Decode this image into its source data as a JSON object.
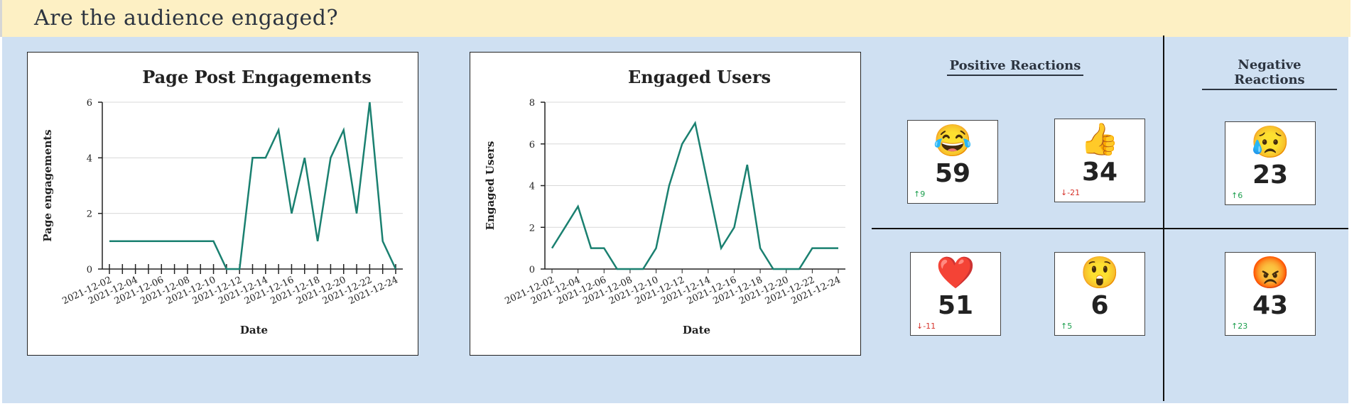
{
  "header": {
    "title": "Are the audience engaged?"
  },
  "chart_data": [
    {
      "type": "line",
      "title": "Page Post Engagements",
      "xlabel": "Date",
      "ylabel": "Page engagements",
      "ylim": [
        0,
        6
      ],
      "yticks": [
        0,
        2,
        4,
        6
      ],
      "xtick_labels": [
        "2021-12-02",
        "2021-12-04",
        "2021-12-06",
        "2021-12-08",
        "2021-12-10",
        "2021-12-12",
        "2021-12-14",
        "2021-12-16",
        "2021-12-18",
        "2021-12-20",
        "2021-12-22",
        "2021-12-24"
      ],
      "x": [
        "2021-12-02",
        "2021-12-03",
        "2021-12-04",
        "2021-12-05",
        "2021-12-06",
        "2021-12-07",
        "2021-12-08",
        "2021-12-09",
        "2021-12-10",
        "2021-12-11",
        "2021-12-12",
        "2021-12-13",
        "2021-12-14",
        "2021-12-15",
        "2021-12-16",
        "2021-12-17",
        "2021-12-18",
        "2021-12-19",
        "2021-12-20",
        "2021-12-21",
        "2021-12-22",
        "2021-12-23",
        "2021-12-24"
      ],
      "values": [
        1,
        1,
        1,
        1,
        1,
        1,
        1,
        1,
        1,
        0,
        0,
        4,
        4,
        5,
        2,
        4,
        1,
        4,
        5,
        2,
        6,
        1,
        0
      ],
      "grid": true,
      "color": "#1a8070"
    },
    {
      "type": "line",
      "title": "Engaged Users",
      "xlabel": "Date",
      "ylabel": "Engaged Users",
      "ylim": [
        0,
        8
      ],
      "yticks": [
        0,
        2,
        4,
        6,
        8
      ],
      "xtick_labels": [
        "2021-12-02",
        "2021-12-04",
        "2021-12-06",
        "2021-12-08",
        "2021-12-10",
        "2021-12-12",
        "2021-12-14",
        "2021-12-16",
        "2021-12-18",
        "2021-12-20",
        "2021-12-22",
        "2021-12-24"
      ],
      "x": [
        "2021-12-02",
        "2021-12-03",
        "2021-12-04",
        "2021-12-05",
        "2021-12-06",
        "2021-12-07",
        "2021-12-08",
        "2021-12-09",
        "2021-12-10",
        "2021-12-11",
        "2021-12-12",
        "2021-12-13",
        "2021-12-14",
        "2021-12-15",
        "2021-12-16",
        "2021-12-17",
        "2021-12-18",
        "2021-12-19",
        "2021-12-20",
        "2021-12-21",
        "2021-12-22",
        "2021-12-23",
        "2021-12-24"
      ],
      "values": [
        1,
        2,
        3,
        1,
        1,
        0,
        0,
        0,
        1,
        4,
        6,
        7,
        4,
        1,
        2,
        5,
        1,
        0,
        0,
        0,
        1,
        1,
        1
      ],
      "grid": true,
      "color": "#1a8070"
    }
  ],
  "reactions": {
    "positive_title": "Positive Reactions",
    "negative_title": "Negative Reactions",
    "cards": [
      {
        "id": "haha",
        "emoji": "😂",
        "icon": "laughing-tears-emoji-icon",
        "count": "59",
        "delta": "↑9",
        "direction": "up"
      },
      {
        "id": "like",
        "emoji": "👍",
        "icon": "thumbs-up-emoji-icon",
        "count": "34",
        "delta": "↓-21",
        "direction": "down"
      },
      {
        "id": "sad",
        "emoji": "😥",
        "icon": "sad-emoji-icon",
        "count": "23",
        "delta": "↑6",
        "direction": "up"
      },
      {
        "id": "love",
        "emoji": "❤️",
        "icon": "heart-emoji-icon",
        "count": "51",
        "delta": "↓-11",
        "direction": "down"
      },
      {
        "id": "wow",
        "emoji": "😲",
        "icon": "wow-emoji-icon",
        "count": "6",
        "delta": "↑5",
        "direction": "up"
      },
      {
        "id": "angry",
        "emoji": "😡",
        "icon": "angry-emoji-icon",
        "count": "43",
        "delta": "↑23",
        "direction": "up"
      }
    ]
  }
}
